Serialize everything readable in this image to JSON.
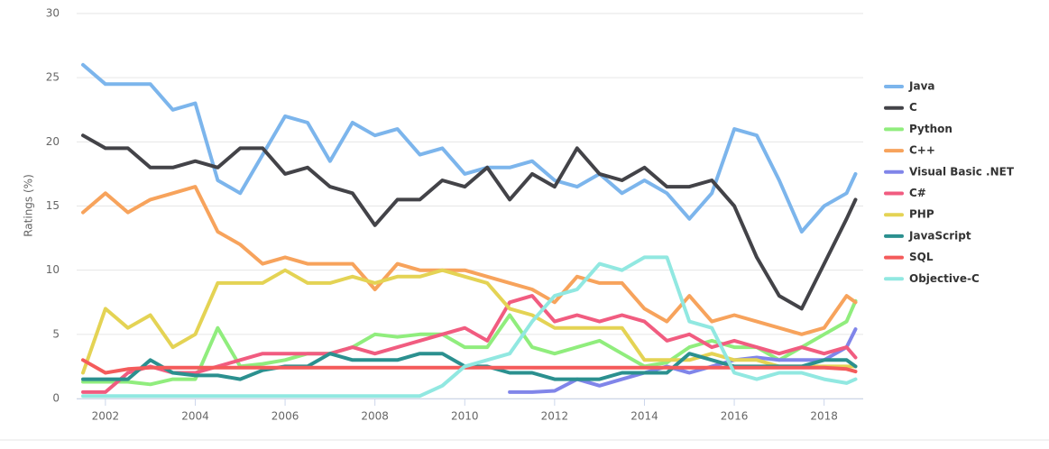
{
  "chart_data": {
    "type": "line",
    "y_label": "Ratings (%)",
    "x": [
      2001.5,
      2002,
      2002.5,
      2003,
      2003.5,
      2004,
      2004.5,
      2005,
      2005.5,
      2006,
      2006.5,
      2007,
      2007.5,
      2008,
      2008.5,
      2009,
      2009.5,
      2010,
      2010.5,
      2011,
      2011.5,
      2012,
      2012.5,
      2013,
      2013.5,
      2014,
      2014.5,
      2015,
      2015.5,
      2016,
      2016.5,
      2017,
      2017.5,
      2018,
      2018.5,
      2018.7
    ],
    "xlim": [
      2001.36,
      2018.87
    ],
    "xticks": [
      2002,
      2004,
      2006,
      2008,
      2010,
      2012,
      2014,
      2016,
      2018
    ],
    "ylim": [
      0,
      30
    ],
    "yticks": [
      0,
      5,
      10,
      15,
      20,
      25,
      30
    ],
    "grid": true,
    "series": [
      {
        "name": "Java",
        "color": "#7cb5ec",
        "values": [
          26,
          24.5,
          24.5,
          24.5,
          22.5,
          23,
          17,
          16,
          19,
          22,
          21.5,
          18.5,
          21.5,
          20.5,
          21,
          19,
          19.5,
          17.5,
          18,
          18,
          18.5,
          17,
          16.5,
          17.5,
          16,
          17,
          16,
          14,
          16,
          21,
          20.5,
          17,
          13,
          15,
          16,
          17.5
        ]
      },
      {
        "name": "C",
        "color": "#434348",
        "values": [
          20.5,
          19.5,
          19.5,
          18,
          18,
          18.5,
          18,
          19.5,
          19.5,
          17.5,
          18,
          16.5,
          16,
          13.5,
          15.5,
          15.5,
          17,
          16.5,
          18,
          15.5,
          17.5,
          16.5,
          19.5,
          17.5,
          17,
          18,
          16.5,
          16.5,
          17,
          15,
          11,
          8,
          7,
          10.5,
          14,
          15.5
        ]
      },
      {
        "name": "Python",
        "color": "#90ed7d",
        "values": [
          1.3,
          1.3,
          1.3,
          1.1,
          1.5,
          1.5,
          5.5,
          2.5,
          2.7,
          3,
          3.5,
          3.5,
          4,
          5,
          4.8,
          5,
          5,
          4,
          4,
          6.5,
          4,
          3.5,
          4,
          4.5,
          3.5,
          2.5,
          2.8,
          4,
          4.5,
          4,
          4,
          3,
          4,
          5,
          6,
          7.6
        ]
      },
      {
        "name": "C++",
        "color": "#f7a35c",
        "values": [
          14.5,
          16,
          14.5,
          15.5,
          16,
          16.5,
          13,
          12,
          10.5,
          11,
          10.5,
          10.5,
          10.5,
          8.5,
          10.5,
          10,
          10,
          10,
          9.5,
          9,
          8.5,
          7.5,
          9.5,
          9,
          9,
          7,
          6,
          8,
          6,
          6.5,
          6,
          5.5,
          5,
          5.5,
          8,
          7.5
        ]
      },
      {
        "name": "Visual Basic .NET",
        "color": "#8085e9",
        "values": [
          null,
          null,
          null,
          null,
          null,
          null,
          null,
          null,
          null,
          null,
          null,
          null,
          null,
          null,
          null,
          null,
          null,
          null,
          null,
          0.5,
          0.5,
          0.6,
          1.5,
          1,
          1.5,
          2,
          2.5,
          2,
          2.5,
          3,
          3.2,
          3,
          3,
          3,
          4,
          5.4
        ]
      },
      {
        "name": "C#",
        "color": "#f15c80",
        "values": [
          0.5,
          0.5,
          2,
          2.5,
          2,
          2,
          2.5,
          3,
          3.5,
          3.5,
          3.5,
          3.5,
          4,
          3.5,
          4,
          4.5,
          5,
          5.5,
          4.5,
          7.5,
          8,
          6,
          6.5,
          6,
          6.5,
          6,
          4.5,
          5,
          4,
          4.5,
          4,
          3.5,
          4,
          3.5,
          4,
          3.2
        ]
      },
      {
        "name": "PHP",
        "color": "#e4d354",
        "values": [
          2,
          7,
          5.5,
          6.5,
          4,
          5,
          9,
          9,
          9,
          10,
          9,
          9,
          9.5,
          9,
          9.5,
          9.5,
          10,
          9.5,
          9,
          7,
          6.5,
          5.5,
          5.5,
          5.5,
          5.5,
          3,
          3,
          3,
          3.5,
          3,
          3,
          2.5,
          2.5,
          2.5,
          2.5,
          2.5
        ]
      },
      {
        "name": "JavaScript",
        "color": "#2b908f",
        "values": [
          1.5,
          1.5,
          1.5,
          3,
          2,
          1.8,
          1.8,
          1.5,
          2.2,
          2.5,
          2.5,
          3.5,
          3,
          3,
          3,
          3.5,
          3.5,
          2.5,
          2.5,
          2,
          2,
          1.5,
          1.5,
          1.5,
          2,
          2,
          2,
          3.5,
          3,
          2.5,
          2.5,
          2.5,
          2.5,
          3,
          3,
          2.5
        ]
      },
      {
        "name": "SQL",
        "color": "#f45b5b",
        "values": [
          3,
          2,
          2.3,
          2.4,
          2.4,
          2.4,
          2.4,
          2.4,
          2.4,
          2.4,
          2.4,
          2.4,
          2.4,
          2.4,
          2.4,
          2.4,
          2.4,
          2.4,
          2.4,
          2.4,
          2.4,
          2.4,
          2.4,
          2.4,
          2.4,
          2.4,
          2.4,
          2.4,
          2.4,
          2.4,
          2.4,
          2.4,
          2.4,
          2.4,
          2.3,
          2.1
        ]
      },
      {
        "name": "Objective-C",
        "color": "#91e8e1",
        "values": [
          0.2,
          0.2,
          0.2,
          0.2,
          0.2,
          0.2,
          0.2,
          0.2,
          0.2,
          0.2,
          0.2,
          0.2,
          0.2,
          0.2,
          0.2,
          0.2,
          1,
          2.5,
          3,
          3.5,
          6,
          8,
          8.5,
          10.5,
          10,
          11,
          11,
          6,
          5.5,
          2,
          1.5,
          2,
          2,
          1.5,
          1.2,
          1.5
        ]
      }
    ]
  }
}
